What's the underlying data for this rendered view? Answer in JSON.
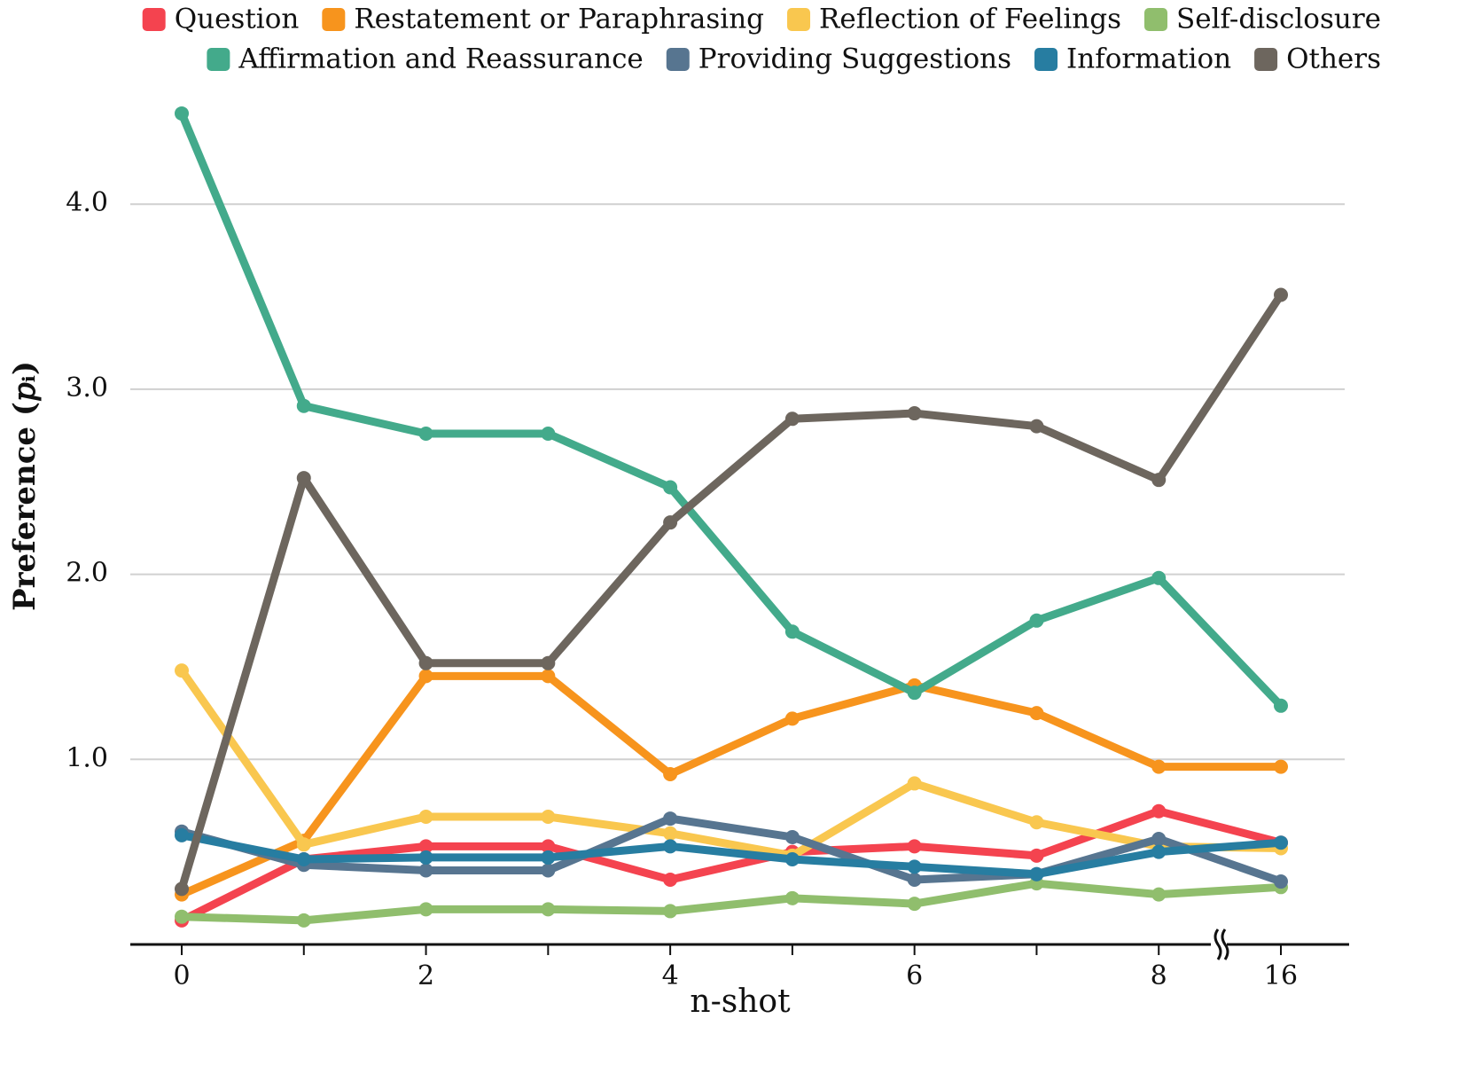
{
  "chart_data": {
    "type": "line",
    "xlabel": "n-shot",
    "ylabel": "Preference (𝑝ᵢ)",
    "categories": [
      "0",
      null,
      "2",
      null,
      "4",
      null,
      "6",
      null,
      "8",
      "16"
    ],
    "ylim": [
      0,
      4.6
    ],
    "yticks": [
      {
        "value": 1,
        "label": "1.0"
      },
      {
        "value": 2,
        "label": "2.0"
      },
      {
        "value": 3,
        "label": "3.0"
      },
      {
        "value": 4,
        "label": "4.0"
      }
    ],
    "grid": true,
    "legend": "top",
    "series": [
      {
        "name": "Question",
        "color": "#f4434f",
        "values": [
          0.13,
          0.46,
          0.53,
          0.53,
          0.35,
          0.5,
          0.53,
          0.48,
          0.72,
          0.55
        ]
      },
      {
        "name": "Restatement or Paraphrasing",
        "color": "#f7941d",
        "values": [
          0.27,
          0.56,
          1.45,
          1.45,
          0.92,
          1.22,
          1.4,
          1.25,
          0.96,
          0.96
        ]
      },
      {
        "name": "Reflection of Feelings",
        "color": "#f9c74f",
        "values": [
          1.48,
          0.54,
          0.69,
          0.69,
          0.6,
          0.48,
          0.87,
          0.66,
          0.53,
          0.52
        ]
      },
      {
        "name": "Self-disclosure",
        "color": "#90be6d",
        "values": [
          0.15,
          0.13,
          0.19,
          0.19,
          0.18,
          0.25,
          0.22,
          0.33,
          0.27,
          0.31
        ]
      },
      {
        "name": "Affirmation and Reassurance",
        "color": "#43aa8b",
        "values": [
          4.49,
          2.91,
          2.76,
          2.76,
          2.47,
          1.69,
          1.36,
          1.75,
          1.98,
          1.29
        ]
      },
      {
        "name": "Providing Suggestions",
        "color": "#577590",
        "values": [
          0.61,
          0.43,
          0.4,
          0.4,
          0.68,
          0.58,
          0.35,
          0.38,
          0.57,
          0.34
        ]
      },
      {
        "name": "Information",
        "color": "#277da1",
        "values": [
          0.59,
          0.46,
          0.47,
          0.47,
          0.53,
          0.46,
          0.42,
          0.38,
          0.5,
          0.55
        ]
      },
      {
        "name": "Others",
        "color": "#6d665e",
        "values": [
          0.3,
          2.52,
          1.52,
          1.52,
          2.28,
          2.84,
          2.87,
          2.8,
          2.51,
          3.51
        ]
      }
    ]
  }
}
